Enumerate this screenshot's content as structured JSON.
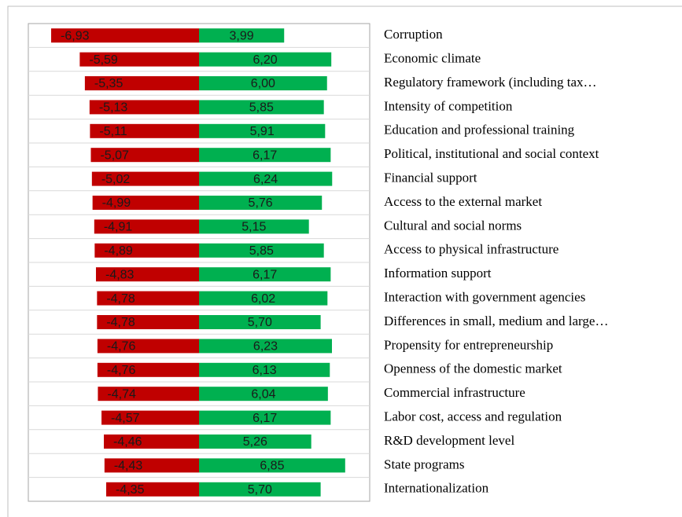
{
  "chart_data": {
    "type": "diverging-bar",
    "categories": [
      "Corruption",
      "Economic climate",
      "Regulatory framework (including tax…",
      "Intensity of competition",
      "Education and professional training",
      "Political, institutional and social context",
      "Financial support",
      "Access to the external market",
      "Cultural and social norms",
      "Access to physical infrastructure",
      "Information support",
      "Interaction with government agencies",
      "Differences in small, medium and large…",
      "Propensity for entrepreneurship",
      "Openness of the domestic market",
      "Commercial infrastructure",
      "Labor cost, access and regulation",
      "R&D development level",
      "State programs",
      "Internationalization"
    ],
    "series": [
      {
        "color": "#c00000",
        "values": [
          -6.93,
          -5.59,
          -5.35,
          -5.13,
          -5.11,
          -5.07,
          -5.02,
          -4.99,
          -4.91,
          -4.89,
          -4.83,
          -4.78,
          -4.78,
          -4.76,
          -4.76,
          -4.74,
          -4.57,
          -4.46,
          -4.43,
          -4.35
        ],
        "value_labels": [
          "-6,93",
          "-5,59",
          "-5,35",
          "-5,13",
          "-5,11",
          "-5,07",
          "-5,02",
          "-4,99",
          "-4,91",
          "-4,89",
          "-4,83",
          "-4,78",
          "-4,78",
          "-4,76",
          "-4,76",
          "-4,74",
          "-4,57",
          "-4,46",
          "-4,43",
          "-4,35"
        ]
      },
      {
        "color": "#00b050",
        "values": [
          3.99,
          6.2,
          6.0,
          5.85,
          5.91,
          6.17,
          6.24,
          5.76,
          5.15,
          5.85,
          6.17,
          6.02,
          5.7,
          6.23,
          6.13,
          6.04,
          6.17,
          5.26,
          6.85,
          5.7
        ],
        "value_labels": [
          "3,99",
          "6,20",
          "6,00",
          "5,85",
          "5,91",
          "6,17",
          "6,24",
          "5,76",
          "5,15",
          "5,85",
          "6,17",
          "6,02",
          "5,70",
          "6,23",
          "6,13",
          "6,04",
          "6,17",
          "5,26",
          "6,85",
          "5,70"
        ]
      }
    ],
    "xlim": [
      -8,
      8
    ]
  }
}
